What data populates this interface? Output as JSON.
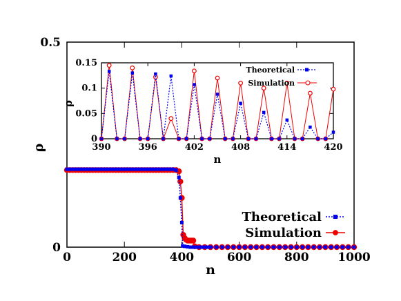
{
  "chart_data": [
    {
      "type": "line",
      "title": "",
      "xlabel": "n",
      "ylabel": "ρ",
      "xlim": [
        0,
        1000
      ],
      "ylim": [
        0,
        0.5
      ],
      "x_ticks": [
        "0",
        "200",
        "400",
        "600",
        "800",
        "1000"
      ],
      "y_ticks": [
        "0",
        "0.5"
      ],
      "legend_position": "bottom-right",
      "series": [
        {
          "name": "Theoretical",
          "color": "#0000ee",
          "line_style": "dotted",
          "marker": "square",
          "points": [
            [
              0,
              0.19
            ],
            [
              10,
              0.19
            ],
            [
              20,
              0.19
            ],
            [
              30,
              0.19
            ],
            [
              40,
              0.19
            ],
            [
              50,
              0.19
            ],
            [
              60,
              0.19
            ],
            [
              70,
              0.19
            ],
            [
              80,
              0.19
            ],
            [
              90,
              0.19
            ],
            [
              100,
              0.19
            ],
            [
              110,
              0.19
            ],
            [
              120,
              0.19
            ],
            [
              130,
              0.19
            ],
            [
              140,
              0.19
            ],
            [
              150,
              0.19
            ],
            [
              160,
              0.19
            ],
            [
              170,
              0.19
            ],
            [
              180,
              0.19
            ],
            [
              190,
              0.19
            ],
            [
              200,
              0.19
            ],
            [
              210,
              0.19
            ],
            [
              220,
              0.19
            ],
            [
              230,
              0.19
            ],
            [
              240,
              0.19
            ],
            [
              250,
              0.19
            ],
            [
              260,
              0.19
            ],
            [
              270,
              0.19
            ],
            [
              280,
              0.19
            ],
            [
              290,
              0.19
            ],
            [
              300,
              0.19
            ],
            [
              310,
              0.19
            ],
            [
              320,
              0.19
            ],
            [
              330,
              0.19
            ],
            [
              340,
              0.19
            ],
            [
              350,
              0.19
            ],
            [
              360,
              0.19
            ],
            [
              370,
              0.19
            ],
            [
              380,
              0.188
            ],
            [
              390,
              0.17
            ],
            [
              395,
              0.12
            ],
            [
              400,
              0.06
            ],
            [
              403,
              0.003
            ],
            [
              410,
              0.002
            ],
            [
              420,
              0.001
            ],
            [
              430,
              0.0
            ],
            [
              440,
              0.0
            ],
            [
              450,
              0.0
            ],
            [
              460,
              0.0
            ],
            [
              470,
              0.0
            ],
            [
              480,
              0.0
            ],
            [
              490,
              0.0
            ],
            [
              500,
              0.0
            ],
            [
              520,
              0.0
            ],
            [
              540,
              0.0
            ],
            [
              560,
              0.0
            ],
            [
              580,
              0.0
            ],
            [
              600,
              0.0
            ],
            [
              620,
              0.0
            ],
            [
              640,
              0.0
            ],
            [
              660,
              0.0
            ],
            [
              680,
              0.0
            ],
            [
              700,
              0.0
            ],
            [
              720,
              0.0
            ],
            [
              740,
              0.0
            ],
            [
              760,
              0.0
            ],
            [
              780,
              0.0
            ],
            [
              800,
              0.0
            ],
            [
              820,
              0.0
            ],
            [
              840,
              0.0
            ],
            [
              860,
              0.0
            ],
            [
              880,
              0.0
            ],
            [
              900,
              0.0
            ],
            [
              920,
              0.0
            ],
            [
              940,
              0.0
            ],
            [
              960,
              0.0
            ],
            [
              980,
              0.0
            ],
            [
              1000,
              0.0
            ]
          ]
        },
        {
          "name": "Simulation",
          "color": "#ee0000",
          "line_style": "solid",
          "marker": "circle",
          "points": [
            [
              0,
              0.188
            ],
            [
              10,
              0.188
            ],
            [
              20,
              0.188
            ],
            [
              30,
              0.188
            ],
            [
              40,
              0.188
            ],
            [
              50,
              0.188
            ],
            [
              60,
              0.188
            ],
            [
              70,
              0.188
            ],
            [
              80,
              0.188
            ],
            [
              90,
              0.188
            ],
            [
              100,
              0.188
            ],
            [
              110,
              0.188
            ],
            [
              120,
              0.188
            ],
            [
              130,
              0.188
            ],
            [
              140,
              0.188
            ],
            [
              150,
              0.188
            ],
            [
              160,
              0.188
            ],
            [
              170,
              0.188
            ],
            [
              180,
              0.188
            ],
            [
              190,
              0.188
            ],
            [
              200,
              0.188
            ],
            [
              210,
              0.188
            ],
            [
              220,
              0.188
            ],
            [
              230,
              0.188
            ],
            [
              240,
              0.188
            ],
            [
              250,
              0.188
            ],
            [
              260,
              0.188
            ],
            [
              270,
              0.188
            ],
            [
              280,
              0.188
            ],
            [
              290,
              0.188
            ],
            [
              300,
              0.188
            ],
            [
              310,
              0.188
            ],
            [
              320,
              0.188
            ],
            [
              330,
              0.188
            ],
            [
              340,
              0.188
            ],
            [
              350,
              0.188
            ],
            [
              360,
              0.188
            ],
            [
              370,
              0.188
            ],
            [
              380,
              0.188
            ],
            [
              390,
              0.185
            ],
            [
              395,
              0.16
            ],
            [
              400,
              0.12
            ],
            [
              405,
              0.03
            ],
            [
              410,
              0.022
            ],
            [
              415,
              0.018
            ],
            [
              420,
              0.016
            ],
            [
              425,
              0.016
            ],
            [
              430,
              0.016
            ],
            [
              435,
              0.016
            ],
            [
              440,
              0.016
            ],
            [
              445,
              0.002
            ],
            [
              460,
              0.0
            ],
            [
              480,
              0.0
            ],
            [
              500,
              0.0
            ],
            [
              520,
              0.0
            ],
            [
              540,
              0.0
            ],
            [
              560,
              0.0
            ],
            [
              580,
              0.0
            ],
            [
              600,
              0.0
            ],
            [
              620,
              0.0
            ],
            [
              640,
              0.0
            ],
            [
              660,
              0.0
            ],
            [
              680,
              0.0
            ],
            [
              700,
              0.0
            ],
            [
              720,
              0.0
            ],
            [
              740,
              0.0
            ],
            [
              760,
              0.0
            ],
            [
              780,
              0.0
            ],
            [
              800,
              0.0
            ],
            [
              820,
              0.0
            ],
            [
              840,
              0.0
            ],
            [
              860,
              0.0
            ],
            [
              880,
              0.0
            ],
            [
              900,
              0.0
            ],
            [
              920,
              0.0
            ],
            [
              940,
              0.0
            ],
            [
              960,
              0.0
            ],
            [
              980,
              0.0
            ],
            [
              1000,
              0.0
            ]
          ]
        }
      ]
    },
    {
      "type": "line",
      "title": "",
      "xlabel": "n",
      "ylabel": "ρ",
      "xlim": [
        390,
        420
      ],
      "ylim": [
        0,
        0.15
      ],
      "x_ticks": [
        "390",
        "396",
        "402",
        "408",
        "414",
        "420"
      ],
      "y_ticks": [
        "0",
        "0.05",
        "0.1",
        "0.15"
      ],
      "legend_position": "top-right",
      "series": [
        {
          "name": "Theoretical",
          "color": "#0000ee",
          "line_style": "dotted",
          "marker": "square",
          "points": [
            [
              390,
              0
            ],
            [
              391,
              0.133
            ],
            [
              392,
              0
            ],
            [
              393,
              0
            ],
            [
              394,
              0.13
            ],
            [
              395,
              0
            ],
            [
              396,
              0
            ],
            [
              397,
              0.128
            ],
            [
              398,
              0
            ],
            [
              399,
              0.124
            ],
            [
              400,
              0
            ],
            [
              401,
              0
            ],
            [
              402,
              0.107
            ],
            [
              403,
              0
            ],
            [
              404,
              0
            ],
            [
              405,
              0.088
            ],
            [
              406,
              0
            ],
            [
              407,
              0
            ],
            [
              408,
              0.07
            ],
            [
              409,
              0
            ],
            [
              410,
              0
            ],
            [
              411,
              0.052
            ],
            [
              412,
              0
            ],
            [
              413,
              0
            ],
            [
              414,
              0.037
            ],
            [
              415,
              0
            ],
            [
              416,
              0
            ],
            [
              417,
              0.023
            ],
            [
              418,
              0
            ],
            [
              419,
              0
            ],
            [
              420,
              0.013
            ]
          ]
        },
        {
          "name": "Simulation",
          "color": "#ee0000",
          "line_style": "solid",
          "marker": "circle",
          "points": [
            [
              390,
              0
            ],
            [
              391,
              0.145
            ],
            [
              392,
              0
            ],
            [
              393,
              0
            ],
            [
              394,
              0.14
            ],
            [
              395,
              0
            ],
            [
              396,
              0
            ],
            [
              397,
              0.122
            ],
            [
              398,
              0
            ],
            [
              399,
              0.04
            ],
            [
              400,
              0
            ],
            [
              401,
              0
            ],
            [
              402,
              0.134
            ],
            [
              403,
              0
            ],
            [
              404,
              0
            ],
            [
              405,
              0.12
            ],
            [
              406,
              0
            ],
            [
              407,
              0
            ],
            [
              408,
              0.11
            ],
            [
              409,
              0
            ],
            [
              410,
              0
            ],
            [
              411,
              0.1
            ],
            [
              412,
              0
            ],
            [
              413,
              0
            ],
            [
              414,
              0.11
            ],
            [
              415,
              0
            ],
            [
              416,
              0
            ],
            [
              417,
              0.09
            ],
            [
              418,
              0
            ],
            [
              419,
              0
            ],
            [
              420,
              0.098
            ]
          ]
        }
      ]
    }
  ]
}
